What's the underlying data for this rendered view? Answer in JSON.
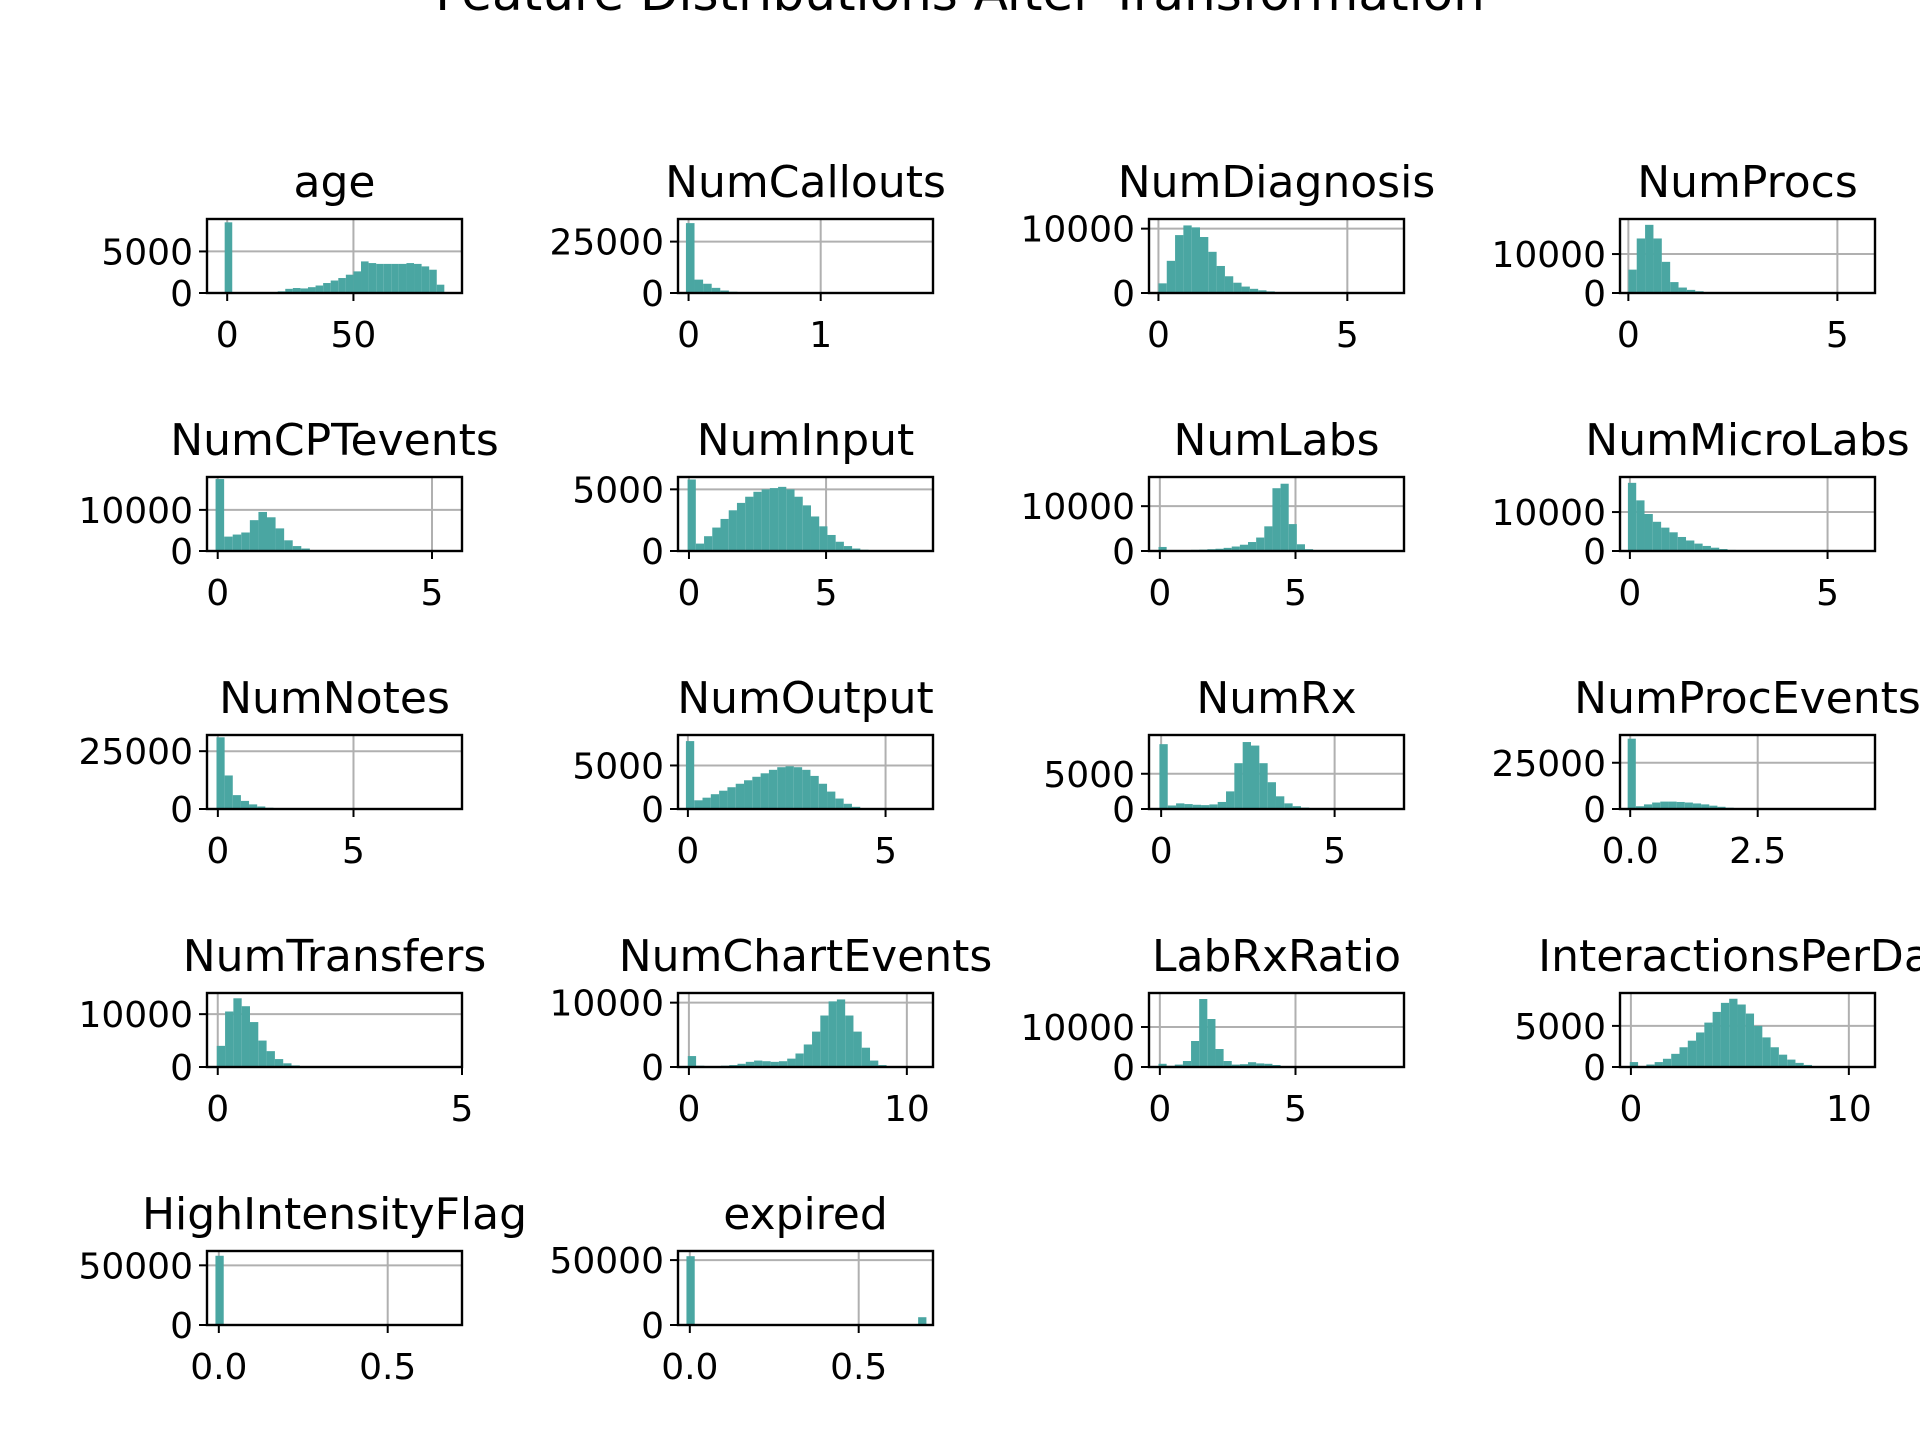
{
  "figure": {
    "title": "Feature Distributions After Transformation",
    "bar_color": "#4aa6a2",
    "grid_color": "#b0b0b0"
  },
  "chart_data": [
    {
      "type": "bar",
      "title": "age",
      "xlim": [
        -8,
        93
      ],
      "ylim": [
        0,
        8900
      ],
      "xticks": [
        {
          "v": 0,
          "label": "0"
        },
        {
          "v": 50,
          "label": "50"
        }
      ],
      "yticks": [
        {
          "v": 0,
          "label": "0"
        },
        {
          "v": 5000,
          "label": "5000"
        }
      ],
      "bins": {
        "start": -1,
        "width": 3,
        "values": [
          8500,
          0,
          0,
          0,
          0,
          0,
          0,
          200,
          500,
          600,
          550,
          700,
          900,
          1200,
          1500,
          1800,
          2200,
          2600,
          3800,
          3600,
          3500,
          3500,
          3500,
          3500,
          3600,
          3500,
          3200,
          2800,
          1000
        ]
      }
    },
    {
      "type": "bar",
      "title": "NumCallouts",
      "xlim": [
        -0.08,
        1.85
      ],
      "ylim": [
        0,
        36000
      ],
      "xticks": [
        {
          "v": 0,
          "label": "0"
        },
        {
          "v": 1,
          "label": "1"
        }
      ],
      "yticks": [
        {
          "v": 0,
          "label": "0"
        },
        {
          "v": 25000,
          "label": "25000"
        }
      ],
      "bins": {
        "start": -0.02,
        "width": 0.065,
        "values": [
          34000,
          6500,
          4500,
          2500,
          1200,
          600,
          300,
          150,
          80,
          40,
          20,
          10,
          5,
          0,
          0,
          0,
          0,
          0,
          0,
          0,
          0,
          0,
          0,
          0,
          0,
          0,
          0,
          0
        ]
      }
    },
    {
      "type": "bar",
      "title": "NumDiagnosis",
      "xlim": [
        -0.25,
        6.5
      ],
      "ylim": [
        0,
        11500
      ],
      "xticks": [
        {
          "v": 0,
          "label": "0"
        },
        {
          "v": 5,
          "label": "5"
        }
      ],
      "yticks": [
        {
          "v": 0,
          "label": "0"
        },
        {
          "v": 10000,
          "label": "10000"
        }
      ],
      "bins": {
        "start": 0,
        "width": 0.22,
        "values": [
          1500,
          5000,
          9000,
          10500,
          10200,
          8700,
          6400,
          4200,
          2600,
          1600,
          1000,
          650,
          420,
          250,
          150,
          80,
          40,
          20,
          10,
          5,
          0,
          0,
          0,
          0,
          0,
          0,
          0,
          0,
          0
        ]
      }
    },
    {
      "type": "bar",
      "title": "NumProcs",
      "xlim": [
        -0.2,
        5.9
      ],
      "ylim": [
        0,
        19000
      ],
      "xticks": [
        {
          "v": 0,
          "label": "0"
        },
        {
          "v": 5,
          "label": "5"
        }
      ],
      "yticks": [
        {
          "v": 0,
          "label": "0"
        },
        {
          "v": 10000,
          "label": "10000"
        }
      ],
      "bins": {
        "start": 0,
        "width": 0.2,
        "values": [
          6000,
          14000,
          17500,
          14000,
          8000,
          2800,
          1400,
          800,
          450,
          220,
          100,
          50,
          20,
          10,
          5,
          0,
          0,
          0,
          0,
          0,
          0,
          0,
          0,
          0,
          0,
          0,
          0,
          0,
          0
        ]
      }
    },
    {
      "type": "bar",
      "title": "NumCPTevents",
      "xlim": [
        -0.25,
        5.7
      ],
      "ylim": [
        0,
        18000
      ],
      "xticks": [
        {
          "v": 0,
          "label": "0"
        },
        {
          "v": 5,
          "label": "5"
        }
      ],
      "yticks": [
        {
          "v": 0,
          "label": "0"
        },
        {
          "v": 10000,
          "label": "10000"
        }
      ],
      "bins": {
        "start": -0.05,
        "width": 0.2,
        "values": [
          17500,
          3500,
          4000,
          4500,
          7500,
          9500,
          8200,
          5500,
          2600,
          1200,
          600,
          200,
          80,
          30,
          10,
          0,
          0,
          0,
          0,
          0,
          0,
          0,
          0,
          0,
          0,
          0,
          0,
          0,
          0
        ]
      }
    },
    {
      "type": "bar",
      "title": "NumInput",
      "xlim": [
        -0.4,
        8.9
      ],
      "ylim": [
        0,
        6000
      ],
      "xticks": [
        {
          "v": 0,
          "label": "0"
        },
        {
          "v": 5,
          "label": "5"
        }
      ],
      "yticks": [
        {
          "v": 0,
          "label": "0"
        },
        {
          "v": 5000,
          "label": "5000"
        }
      ],
      "bins": {
        "start": -0.05,
        "width": 0.3,
        "values": [
          5800,
          600,
          1200,
          1900,
          2600,
          3300,
          3900,
          4400,
          4800,
          5000,
          5100,
          5200,
          5000,
          4400,
          3700,
          2800,
          2000,
          1300,
          750,
          400,
          200,
          100,
          50,
          20,
          10,
          0,
          0,
          0,
          0
        ]
      }
    },
    {
      "type": "bar",
      "title": "NumLabs",
      "xlim": [
        -0.4,
        9.0
      ],
      "ylim": [
        0,
        16500
      ],
      "xticks": [
        {
          "v": 0,
          "label": "0"
        },
        {
          "v": 5,
          "label": "5"
        }
      ],
      "yticks": [
        {
          "v": 0,
          "label": "0"
        },
        {
          "v": 10000,
          "label": "10000"
        }
      ],
      "bins": {
        "start": -0.05,
        "width": 0.3,
        "values": [
          900,
          200,
          150,
          200,
          250,
          300,
          400,
          500,
          700,
          1000,
          1400,
          2000,
          3000,
          5500,
          14000,
          15000,
          6000,
          1500,
          400,
          150,
          60,
          20,
          10,
          5,
          0,
          0,
          0,
          0,
          0
        ]
      }
    },
    {
      "type": "bar",
      "title": "NumMicroLabs",
      "xlim": [
        -0.25,
        6.2
      ],
      "ylim": [
        0,
        19000
      ],
      "xticks": [
        {
          "v": 0,
          "label": "0"
        },
        {
          "v": 5,
          "label": "5"
        }
      ],
      "yticks": [
        {
          "v": 0,
          "label": "0"
        },
        {
          "v": 10000,
          "label": "10000"
        }
      ],
      "bins": {
        "start": -0.05,
        "width": 0.21,
        "values": [
          17500,
          13000,
          9500,
          7500,
          6000,
          4800,
          3600,
          2700,
          1900,
          1300,
          850,
          500,
          280,
          150,
          80,
          40,
          20,
          10,
          5,
          0,
          0,
          0,
          0,
          0,
          0,
          0,
          0,
          0,
          0
        ]
      }
    },
    {
      "type": "bar",
      "title": "NumNotes",
      "xlim": [
        -0.4,
        9.0
      ],
      "ylim": [
        0,
        32000
      ],
      "xticks": [
        {
          "v": 0,
          "label": "0"
        },
        {
          "v": 5,
          "label": "5"
        }
      ],
      "yticks": [
        {
          "v": 0,
          "label": "0"
        },
        {
          "v": 25000,
          "label": "25000"
        }
      ],
      "bins": {
        "start": -0.05,
        "width": 0.3,
        "values": [
          31000,
          14500,
          6000,
          3500,
          2000,
          1100,
          550,
          250,
          120,
          50,
          20,
          10,
          5,
          0,
          0,
          0,
          0,
          0,
          0,
          0,
          0,
          0,
          0,
          0,
          0,
          0,
          0,
          0,
          0
        ]
      }
    },
    {
      "type": "bar",
      "title": "NumOutput",
      "xlim": [
        -0.25,
        6.2
      ],
      "ylim": [
        0,
        8500
      ],
      "xticks": [
        {
          "v": 0,
          "label": "0"
        },
        {
          "v": 5,
          "label": "5"
        }
      ],
      "yticks": [
        {
          "v": 0,
          "label": "0"
        },
        {
          "v": 5000,
          "label": "5000"
        }
      ],
      "bins": {
        "start": -0.05,
        "width": 0.21,
        "values": [
          7800,
          1000,
          1300,
          1700,
          2100,
          2500,
          2900,
          3300,
          3700,
          4100,
          4500,
          4800,
          4900,
          4800,
          4500,
          3800,
          2900,
          2000,
          1200,
          600,
          250,
          100,
          40,
          20,
          10,
          0,
          0,
          0,
          0
        ]
      }
    },
    {
      "type": "bar",
      "title": "NumRx",
      "xlim": [
        -0.35,
        7.0
      ],
      "ylim": [
        0,
        10500
      ],
      "xticks": [
        {
          "v": 0,
          "label": "0"
        },
        {
          "v": 5,
          "label": "5"
        }
      ],
      "yticks": [
        {
          "v": 0,
          "label": "0"
        },
        {
          "v": 5000,
          "label": "5000"
        }
      ],
      "bins": {
        "start": -0.05,
        "width": 0.24,
        "values": [
          9200,
          500,
          800,
          700,
          600,
          550,
          650,
          1000,
          2500,
          6500,
          9500,
          9000,
          6500,
          3800,
          1800,
          800,
          400,
          200,
          100,
          50,
          20,
          10,
          5,
          0,
          0,
          0,
          0,
          0,
          0
        ]
      }
    },
    {
      "type": "bar",
      "title": "NumProcEvents",
      "xlim": [
        -0.2,
        4.8
      ],
      "ylim": [
        0,
        40000
      ],
      "xticks": [
        {
          "v": 0,
          "label": "0.0"
        },
        {
          "v": 2.5,
          "label": "2.5"
        }
      ],
      "yticks": [
        {
          "v": 0,
          "label": "0"
        },
        {
          "v": 25000,
          "label": "25000"
        }
      ],
      "bins": {
        "start": -0.05,
        "width": 0.16,
        "values": [
          38000,
          1500,
          2500,
          3500,
          4000,
          4000,
          3800,
          3500,
          3000,
          2500,
          1800,
          1200,
          700,
          400,
          200,
          100,
          50,
          20,
          10,
          5,
          0,
          0,
          0,
          0,
          0,
          0,
          0,
          0,
          0
        ]
      }
    },
    {
      "type": "bar",
      "title": "NumTransfers",
      "xlim": [
        -0.22,
        5.0
      ],
      "ylim": [
        0,
        14000
      ],
      "xticks": [
        {
          "v": 0,
          "label": "0"
        },
        {
          "v": 5,
          "label": "5"
        }
      ],
      "yticks": [
        {
          "v": 0,
          "label": "0"
        },
        {
          "v": 10000,
          "label": "10000"
        }
      ],
      "bins": {
        "start": -0.02,
        "width": 0.17,
        "values": [
          4000,
          10500,
          13000,
          11500,
          8500,
          5000,
          3000,
          1500,
          700,
          300,
          120,
          50,
          20,
          10,
          5,
          0,
          0,
          0,
          0,
          0,
          0,
          0,
          0,
          0,
          0,
          0,
          0,
          0,
          0
        ]
      }
    },
    {
      "type": "bar",
      "title": "NumChartEvents",
      "xlim": [
        -0.5,
        11.2
      ],
      "ylim": [
        0,
        11500
      ],
      "xticks": [
        {
          "v": 0,
          "label": "0"
        },
        {
          "v": 10,
          "label": "10"
        }
      ],
      "yticks": [
        {
          "v": 0,
          "label": "0"
        },
        {
          "v": 10000,
          "label": "10000"
        }
      ],
      "bins": {
        "start": -0.05,
        "width": 0.38,
        "values": [
          1700,
          200,
          100,
          100,
          200,
          300,
          500,
          800,
          1000,
          900,
          800,
          900,
          1300,
          2100,
          3500,
          5500,
          8000,
          10200,
          10500,
          8000,
          5500,
          3000,
          1000,
          300,
          100,
          30,
          10,
          0,
          0
        ]
      }
    },
    {
      "type": "bar",
      "title": "LabRxRatio",
      "xlim": [
        -0.4,
        9.0
      ],
      "ylim": [
        0,
        18500
      ],
      "xticks": [
        {
          "v": 0,
          "label": "0"
        },
        {
          "v": 5,
          "label": "5"
        }
      ],
      "yticks": [
        {
          "v": 0,
          "label": "0"
        },
        {
          "v": 10000,
          "label": "10000"
        }
      ],
      "bins": {
        "start": -0.05,
        "width": 0.3,
        "values": [
          800,
          300,
          600,
          1500,
          6500,
          17000,
          12000,
          4500,
          1500,
          600,
          700,
          1200,
          900,
          800,
          500,
          250,
          100,
          50,
          20,
          10,
          0,
          0,
          0,
          0,
          0,
          0,
          0,
          0,
          0
        ]
      }
    },
    {
      "type": "bar",
      "title": "InteractionsPerDay",
      "xlim": [
        -0.5,
        11.2
      ],
      "ylim": [
        0,
        9000
      ],
      "xticks": [
        {
          "v": 0,
          "label": "0"
        },
        {
          "v": 10,
          "label": "10"
        }
      ],
      "yticks": [
        {
          "v": 0,
          "label": "0"
        },
        {
          "v": 5000,
          "label": "5000"
        }
      ],
      "bins": {
        "start": -0.05,
        "width": 0.38,
        "values": [
          600,
          100,
          300,
          600,
          1000,
          1600,
          2400,
          3200,
          4200,
          5400,
          6700,
          7800,
          8300,
          7600,
          6500,
          5000,
          3600,
          2400,
          1500,
          900,
          500,
          250,
          120,
          60,
          30,
          10,
          5,
          0,
          0
        ]
      }
    },
    {
      "type": "bar",
      "title": "HighIntensityFlag",
      "xlim": [
        -0.035,
        0.72
      ],
      "ylim": [
        0,
        62000
      ],
      "xticks": [
        {
          "v": 0,
          "label": "0.0"
        },
        {
          "v": 0.5,
          "label": "0.5"
        }
      ],
      "yticks": [
        {
          "v": 0,
          "label": "0"
        },
        {
          "v": 50000,
          "label": "50000"
        }
      ],
      "bins": {
        "start": -0.01,
        "width": 0.0245,
        "values": [
          58000,
          0,
          0,
          0,
          0,
          0,
          0,
          0,
          0,
          0,
          0,
          0,
          0,
          0,
          0,
          0,
          0,
          0,
          0,
          0,
          0,
          0,
          0,
          0,
          0,
          0,
          0,
          0,
          0
        ]
      }
    },
    {
      "type": "bar",
      "title": "expired",
      "xlim": [
        -0.035,
        0.72
      ],
      "ylim": [
        0,
        57000
      ],
      "xticks": [
        {
          "v": 0,
          "label": "0.0"
        },
        {
          "v": 0.5,
          "label": "0.5"
        }
      ],
      "yticks": [
        {
          "v": 0,
          "label": "0"
        },
        {
          "v": 50000,
          "label": "50000"
        }
      ],
      "bins": {
        "start": -0.01,
        "width": 0.0245,
        "values": [
          53000,
          0,
          0,
          0,
          0,
          0,
          0,
          0,
          0,
          0,
          0,
          0,
          0,
          0,
          0,
          0,
          0,
          0,
          0,
          0,
          0,
          0,
          0,
          0,
          0,
          0,
          0,
          0,
          6000
        ]
      }
    }
  ]
}
